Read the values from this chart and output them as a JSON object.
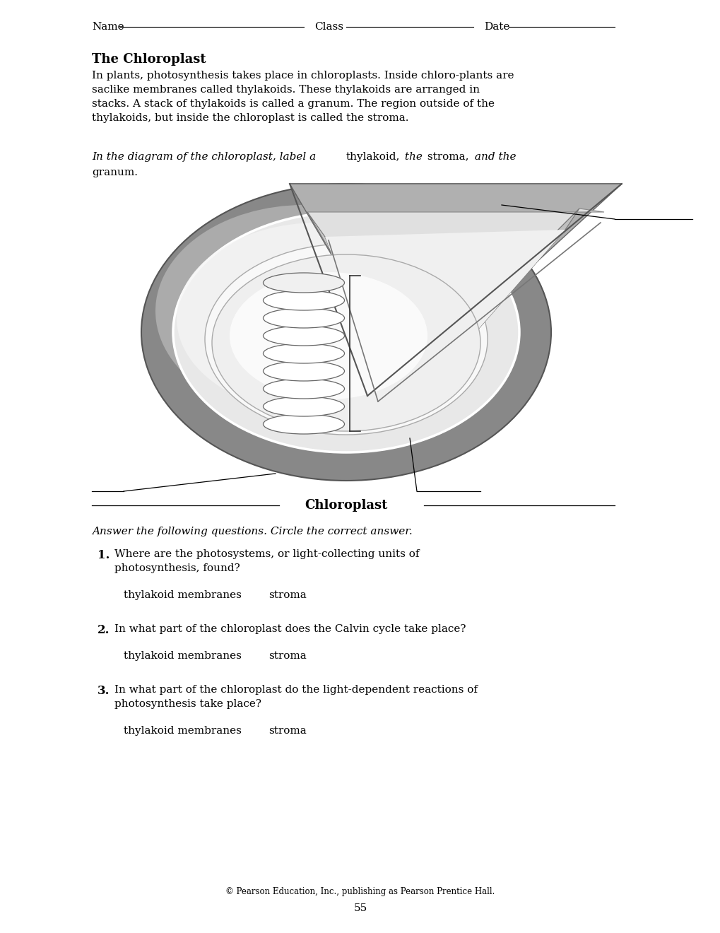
{
  "title": "The Chloroplast",
  "paragraph": "In plants, photosynthesis takes place in chloroplasts. Inside chloro-plants are\nsaclike membranes called thylakoids. These thylakoids are arranged in\nstacks. A stack of thylakoids is called a granum. The region outside of the\nthylakoids, but inside the chloroplast is called the stroma.",
  "chloroplast_label": "Chloroplast",
  "questions_intro": "Answer the following questions. Circle the correct answer.",
  "q1_text": "Where are the photosystems, or light-collecting units of\nphotosynthesis, found?",
  "q1_a": "thylakoid membranes",
  "q1_b": "stroma",
  "q2_text": "In what part of the chloroplast does the Calvin cycle take place?",
  "q2_a": "thylakoid membranes",
  "q2_b": "stroma",
  "q3_text": "In what part of the chloroplast do the light-dependent reactions of\nphotosynthesis take place?",
  "q3_a": "thylakoid membranes",
  "q3_b": "stroma",
  "footer": "© Pearson Education, Inc., publishing as Pearson Prentice Hall.",
  "page_num": "55",
  "bg_color": "#ffffff",
  "text_color": "#1a1a1a"
}
